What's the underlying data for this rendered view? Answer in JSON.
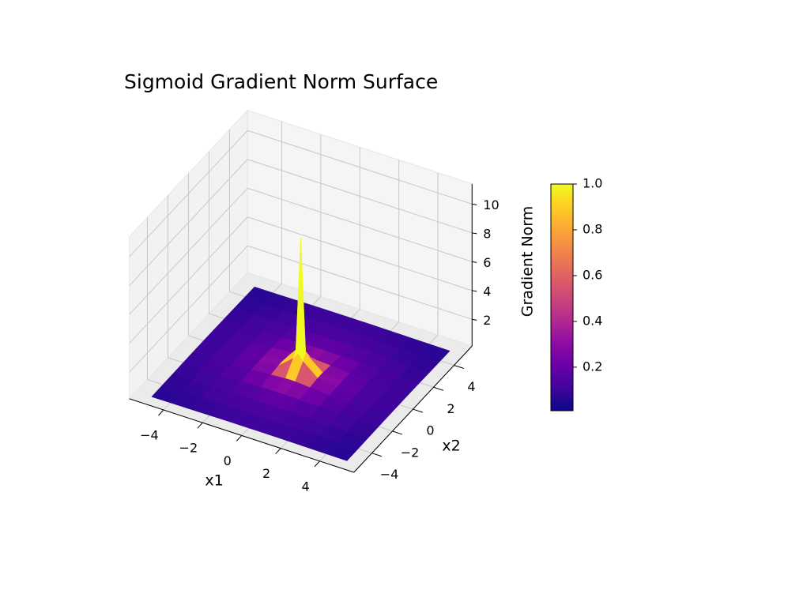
{
  "chart_data": {
    "type": "surface",
    "title": "Sigmoid Gradient Norm Surface",
    "xlabel": "x1",
    "ylabel": "x2",
    "zlabel": "Gradient Norm",
    "colormap": "plasma",
    "x": [
      -5,
      -4,
      -3,
      -2,
      -1,
      -0.25,
      0,
      0.25,
      1,
      2,
      3,
      4,
      5
    ],
    "y": [
      -5,
      -4,
      -3,
      -2,
      -1,
      -0.25,
      0,
      0.25,
      1,
      2,
      3,
      4,
      5
    ],
    "z": [
      [
        0.05,
        0.06,
        0.07,
        0.08,
        0.09,
        0.09,
        0.09,
        0.09,
        0.09,
        0.08,
        0.07,
        0.06,
        0.05
      ],
      [
        0.06,
        0.08,
        0.09,
        0.11,
        0.12,
        0.12,
        0.12,
        0.12,
        0.12,
        0.11,
        0.09,
        0.08,
        0.06
      ],
      [
        0.07,
        0.09,
        0.11,
        0.13,
        0.14,
        0.15,
        0.15,
        0.15,
        0.14,
        0.13,
        0.11,
        0.09,
        0.07
      ],
      [
        0.08,
        0.11,
        0.13,
        0.16,
        0.2,
        0.22,
        0.22,
        0.22,
        0.2,
        0.16,
        0.13,
        0.11,
        0.08
      ],
      [
        0.09,
        0.12,
        0.14,
        0.2,
        0.3,
        0.37,
        0.38,
        0.37,
        0.3,
        0.2,
        0.14,
        0.12,
        0.09
      ],
      [
        0.09,
        0.12,
        0.15,
        0.22,
        0.37,
        1.2,
        1.6,
        1.2,
        0.37,
        0.22,
        0.15,
        0.12,
        0.09
      ],
      [
        0.09,
        0.12,
        0.15,
        0.22,
        0.38,
        1.6,
        9.5,
        1.6,
        0.38,
        0.22,
        0.15,
        0.12,
        0.09
      ],
      [
        0.09,
        0.12,
        0.15,
        0.22,
        0.37,
        1.2,
        1.6,
        1.2,
        0.37,
        0.22,
        0.15,
        0.12,
        0.09
      ],
      [
        0.09,
        0.12,
        0.14,
        0.2,
        0.3,
        0.37,
        0.38,
        0.37,
        0.3,
        0.2,
        0.14,
        0.12,
        0.09
      ],
      [
        0.08,
        0.11,
        0.13,
        0.16,
        0.2,
        0.22,
        0.22,
        0.22,
        0.2,
        0.16,
        0.13,
        0.11,
        0.08
      ],
      [
        0.07,
        0.09,
        0.11,
        0.13,
        0.14,
        0.15,
        0.15,
        0.15,
        0.14,
        0.13,
        0.11,
        0.09,
        0.07
      ],
      [
        0.06,
        0.08,
        0.09,
        0.11,
        0.12,
        0.12,
        0.12,
        0.12,
        0.12,
        0.11,
        0.09,
        0.08,
        0.06
      ],
      [
        0.05,
        0.06,
        0.07,
        0.08,
        0.09,
        0.09,
        0.09,
        0.09,
        0.09,
        0.08,
        0.07,
        0.06,
        0.05
      ]
    ],
    "xlim": [
      -5.75,
      5.75
    ],
    "ylim": [
      -5.75,
      5.75
    ],
    "zlim": [
      0.15,
      11.4
    ],
    "xticks": [
      {
        "value": -4,
        "label": "−4"
      },
      {
        "value": -2,
        "label": "−2"
      },
      0,
      2,
      4
    ],
    "yticks": [
      {
        "value": -4,
        "label": "−4"
      },
      {
        "value": -2,
        "label": "−2"
      },
      0,
      2,
      4
    ],
    "zticks": [
      2,
      4,
      6,
      8,
      10
    ],
    "clim": [
      0.01,
      1.0
    ],
    "cticks": [
      0.2,
      0.4,
      0.6,
      0.8,
      {
        "value": 1,
        "label": "1.0"
      }
    ],
    "grid": true
  }
}
